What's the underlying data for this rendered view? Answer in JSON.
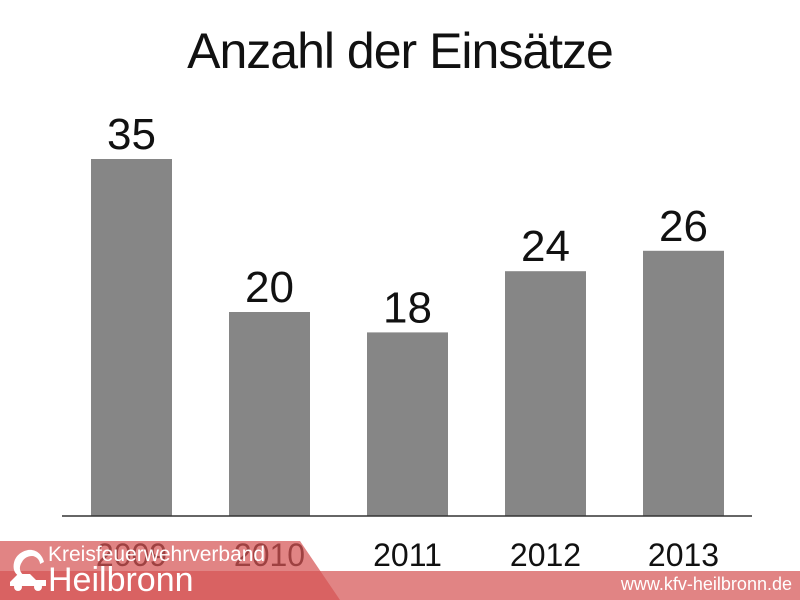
{
  "chart_data": {
    "type": "bar",
    "title": "Anzahl der Einsätze",
    "categories": [
      "2009",
      "2010",
      "2011",
      "2012",
      "2013"
    ],
    "values": [
      35,
      20,
      18,
      24,
      26
    ],
    "xlabel": "",
    "ylabel": "",
    "ylim": [
      0,
      35
    ],
    "grid": false,
    "legend": "none",
    "bar_color": "#868686"
  },
  "footer": {
    "org_line_1": "Kreisfeuerwehrverband",
    "org_line_2": "Heilbronn",
    "website": "www.kfv-heilbronn.de",
    "band_color": "#d65555",
    "logo_icon": "fire-truck-logo-icon"
  }
}
